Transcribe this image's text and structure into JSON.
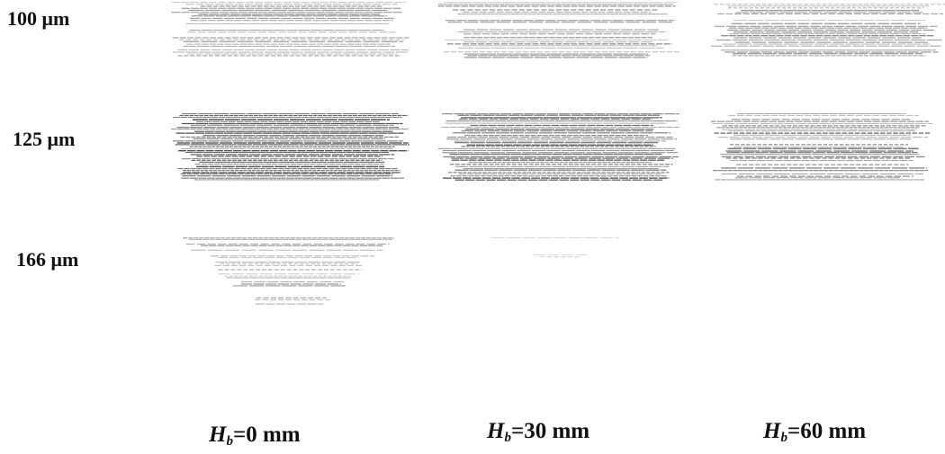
{
  "rows": [
    {
      "label": "100 μm",
      "panels": [
        0.55,
        0.5,
        0.5
      ]
    },
    {
      "label": "125 μm",
      "panels": [
        0.85,
        0.75,
        0.6
      ]
    },
    {
      "label": "166 μm",
      "panels": [
        0.35,
        0.12,
        0
      ]
    }
  ],
  "columns": [
    {
      "symbol": "H",
      "sub": "b",
      "value": "=0 mm"
    },
    {
      "symbol": "H",
      "sub": "b",
      "value": "=30 mm"
    },
    {
      "symbol": "H",
      "sub": "b",
      "value": "=60 mm"
    }
  ]
}
